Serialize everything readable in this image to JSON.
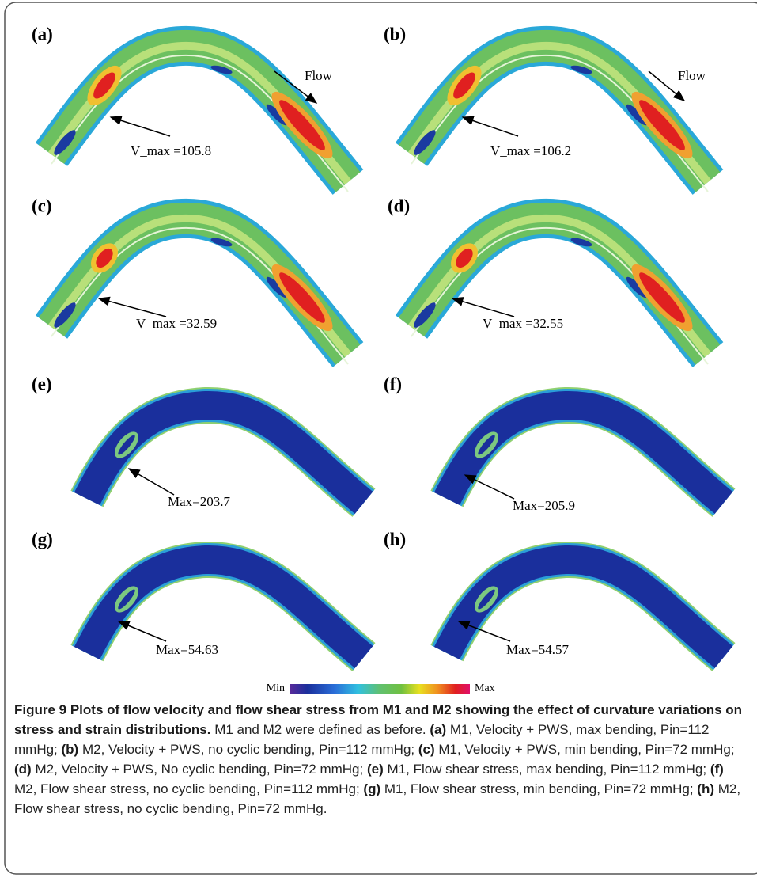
{
  "panels": [
    {
      "label": "(a)",
      "annotation": "V_max =105.8",
      "flow": "Flow"
    },
    {
      "label": "(b)",
      "annotation": "V_max =106.2",
      "flow": "Flow"
    },
    {
      "label": "(c)",
      "annotation": "V_max =32.59"
    },
    {
      "label": "(d)",
      "annotation": "V_max =32.55"
    },
    {
      "label": "(e)",
      "annotation": "Max=203.7"
    },
    {
      "label": "(f)",
      "annotation": "Max=205.9"
    },
    {
      "label": "(g)",
      "annotation": "Max=54.63"
    },
    {
      "label": "(h)",
      "annotation": "Max=54.57"
    }
  ],
  "colorbar": {
    "min": "Min",
    "max": "Max"
  },
  "caption": {
    "title": "Figure 9 Plots of flow velocity and flow shear stress from M1 and M2 showing the effect of curvature variations on stress and strain distributions.",
    "text": "M1 and M2 were defined as before.",
    "items": [
      {
        "label": "(a)",
        "text": "M1, Velocity + PWS, max bending, Pin=112 mmHg;"
      },
      {
        "label": "(b)",
        "text": "M2, Velocity + PWS, no cyclic  bending, Pin=112 mmHg;"
      },
      {
        "label": "(c)",
        "text": "M1, Velocity + PWS, min bending, Pin=72 mmHg;"
      },
      {
        "label": "(d)",
        "text": "M2, Velocity + PWS, No cyclic bending, Pin=72 mmHg;"
      },
      {
        "label": "(e)",
        "text": "M1, Flow shear stress, max bending, Pin=112 mmHg;"
      },
      {
        "label": "(f)",
        "text": "M2, Flow shear stress, no cyclic  bending, Pin=112 mmHg;"
      },
      {
        "label": "(g)",
        "text": "M1, Flow shear stress, min bending, Pin=72 mmHg;"
      },
      {
        "label": "(h)",
        "text": "M2, Flow shear stress, no cyclic bending, Pin=72 mmHg."
      }
    ]
  }
}
